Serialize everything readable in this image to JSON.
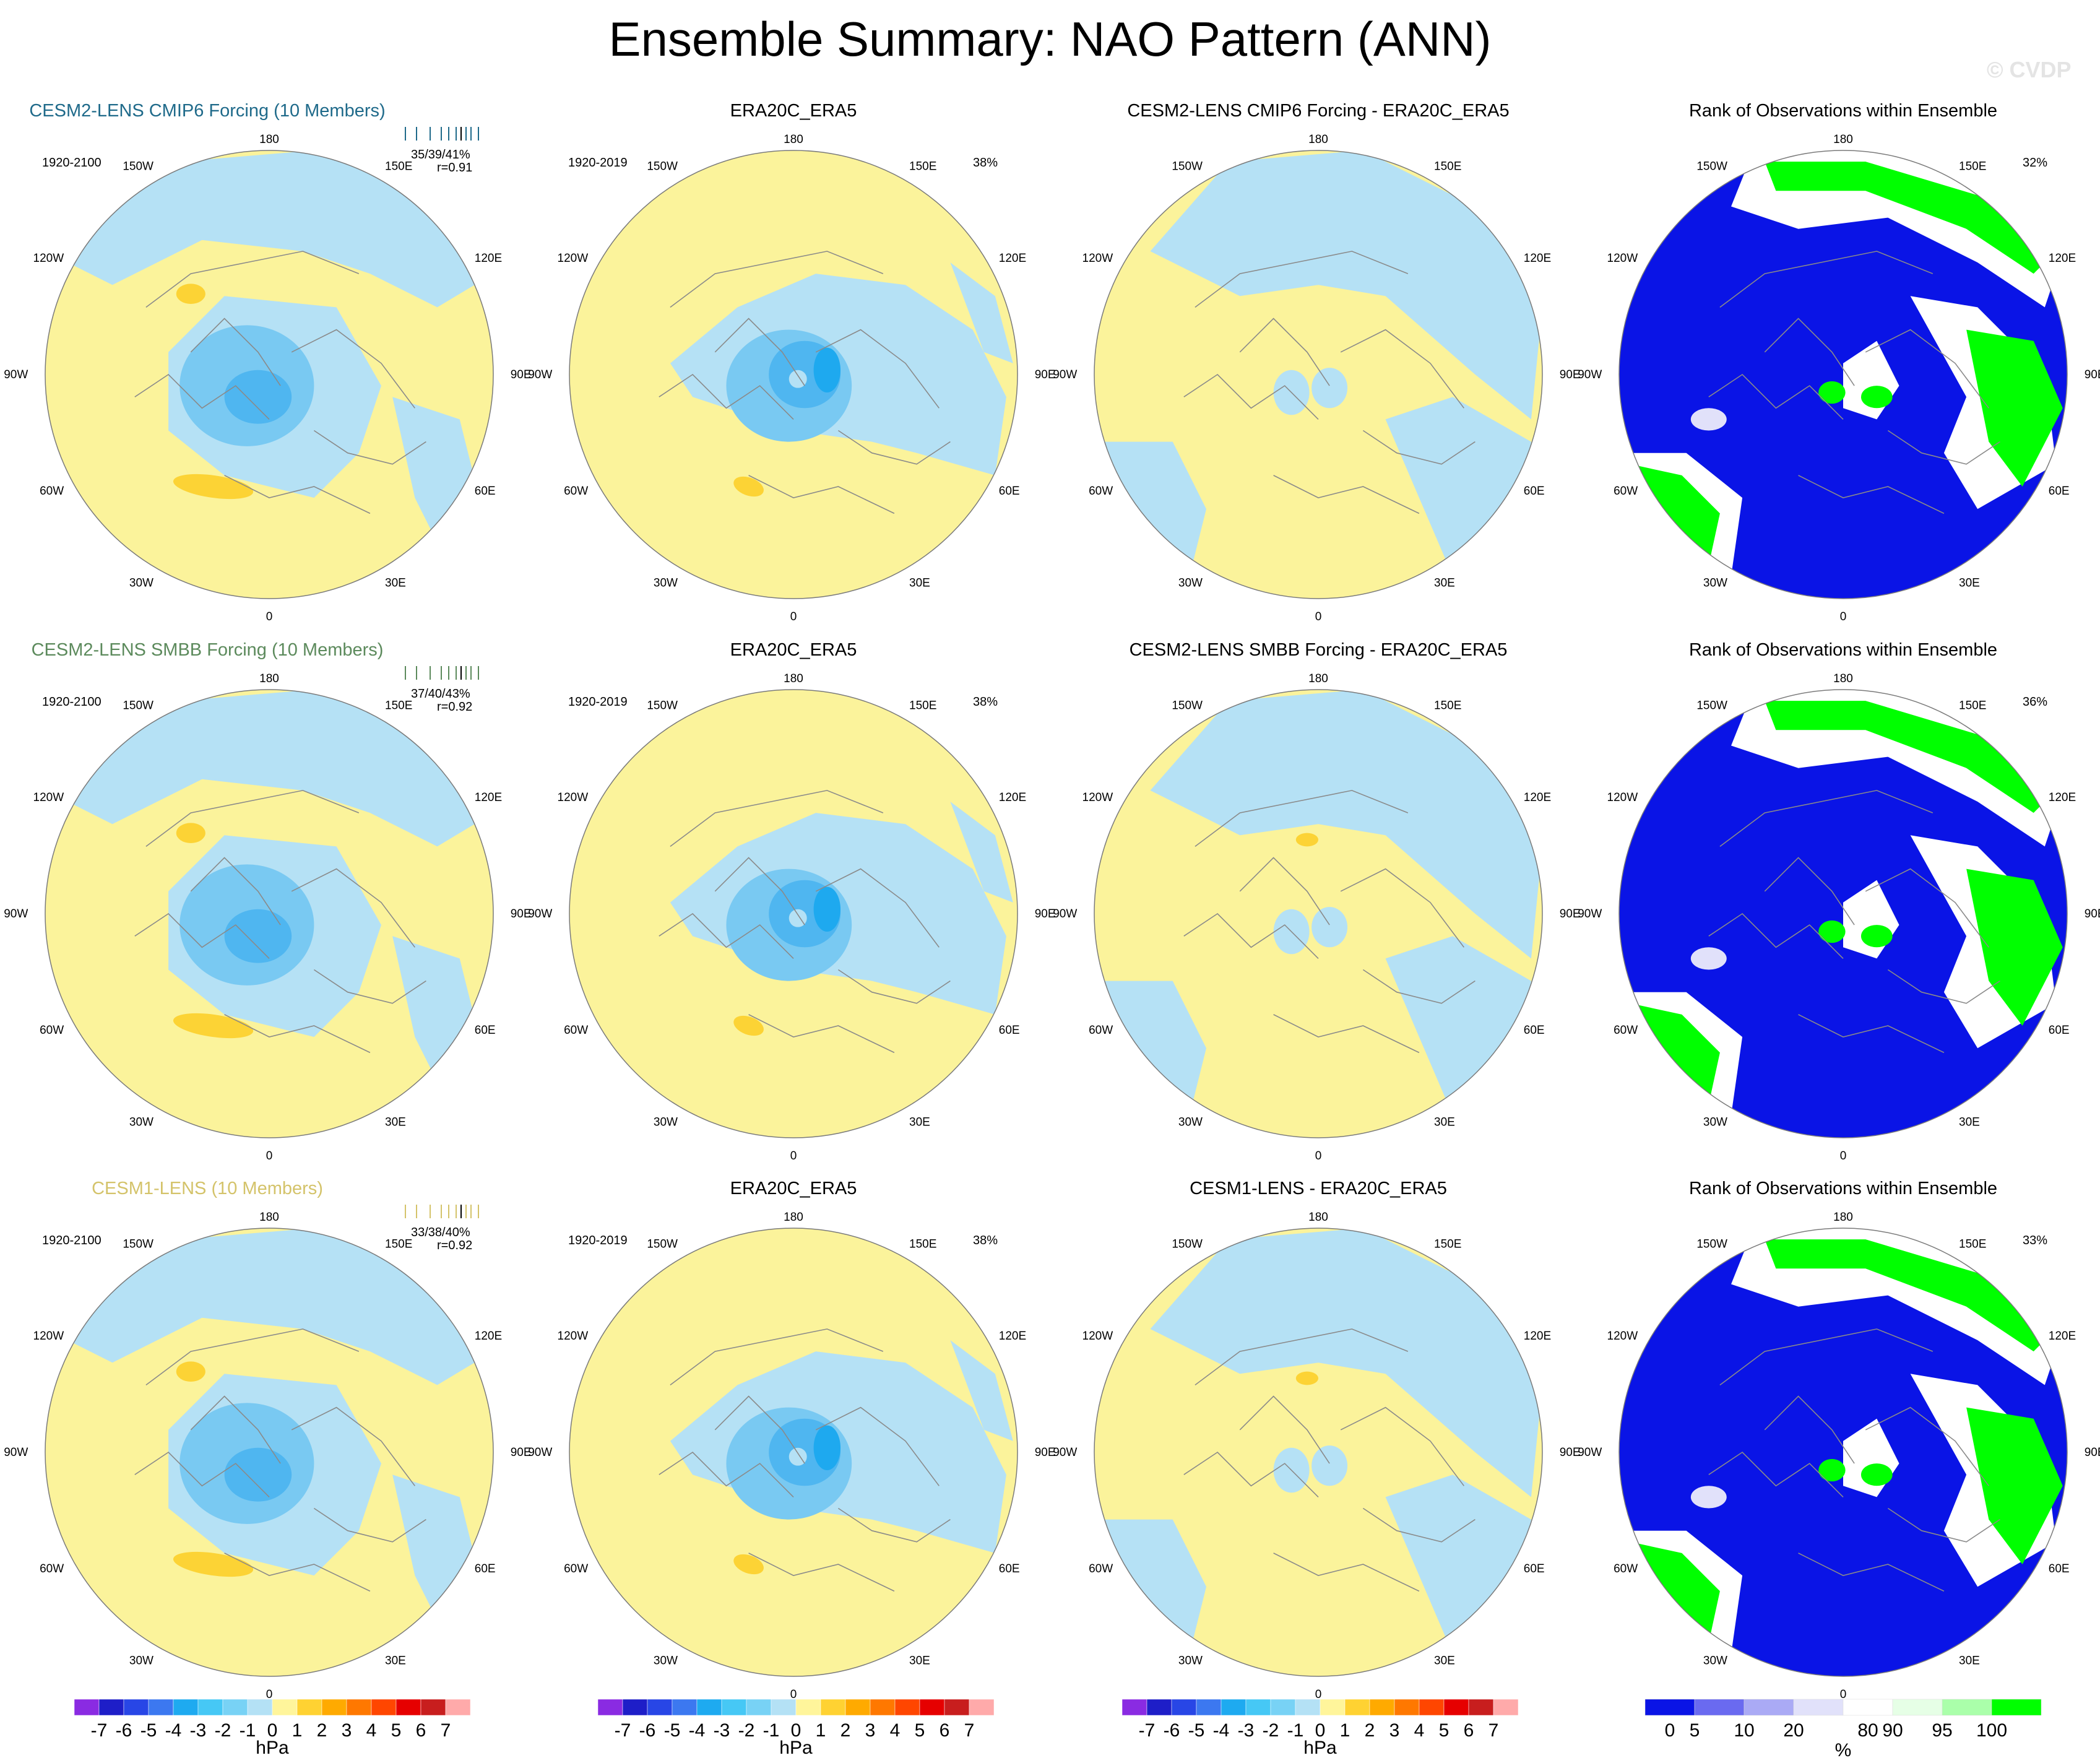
{
  "title": "Ensemble Summary: NAO Pattern (ANN)",
  "watermark": "© CVDP",
  "lon_labels": [
    "180",
    "150W",
    "150E",
    "120W",
    "120E",
    "90W",
    "90E",
    "60W",
    "60E",
    "30W",
    "30E",
    "0"
  ],
  "rows": [
    {
      "model_title": "CESM2-LENS CMIP6 Forcing (10 Members)",
      "model_color": "#1f6a8a",
      "model_years": "1920-2100",
      "spread_stats": "35/39/41%",
      "pattern_corr": "r=0.91",
      "obs_title": "ERA20C_ERA5",
      "obs_years": "1920-2019",
      "obs_pct": "38%",
      "diff_title": "CESM2-LENS CMIP6 Forcing - ERA20C_ERA5",
      "rank_title": "Rank of Observations within Ensemble",
      "rank_pct": "32%"
    },
    {
      "model_title": "CESM2-LENS SMBB Forcing (10 Members)",
      "model_color": "#5c8a5c",
      "model_years": "1920-2100",
      "spread_stats": "37/40/43%",
      "pattern_corr": "r=0.92",
      "obs_title": "ERA20C_ERA5",
      "obs_years": "1920-2019",
      "obs_pct": "38%",
      "diff_title": "CESM2-LENS SMBB Forcing - ERA20C_ERA5",
      "rank_title": "Rank of Observations within Ensemble",
      "rank_pct": "36%"
    },
    {
      "model_title": "CESM1-LENS (10 Members)",
      "model_color": "#d4c36a",
      "model_years": "1920-2100",
      "spread_stats": "33/38/40%",
      "pattern_corr": "r=0.92",
      "obs_title": "ERA20C_ERA5",
      "obs_years": "1920-2019",
      "obs_pct": "38%",
      "diff_title": "CESM1-LENS - ERA20C_ERA5",
      "rank_title": "Rank of Observations within Ensemble",
      "rank_pct": "33%"
    }
  ],
  "hpa_colorbar": {
    "unit": "hPa",
    "labels": [
      "-7",
      "-6",
      "-5",
      "-4",
      "-3",
      "-2",
      "-1",
      "0",
      "1",
      "2",
      "3",
      "4",
      "5",
      "6",
      "7"
    ],
    "colors": [
      "#8a2be2",
      "#1e1ec8",
      "#2846e6",
      "#3c78f0",
      "#1eaaf0",
      "#46c8f5",
      "#78d2f5",
      "#b4e1f5",
      "#fff59b",
      "#ffd232",
      "#ffaa00",
      "#ff7800",
      "#ff4600",
      "#e60000",
      "#c81e1e",
      "#ffaaaa"
    ]
  },
  "pct_colorbar": {
    "unit": "%",
    "labels": [
      "0",
      "5",
      "10",
      "20",
      "80",
      "90",
      "95",
      "100"
    ],
    "colors": [
      "#0a14e6",
      "#6a6af0",
      "#aaaaf5",
      "#e1e1fa",
      "#ffffff",
      "#e6ffe6",
      "#aaffaa",
      "#00ff00"
    ]
  },
  "field_colors": {
    "pos_weak": "#fbf39b",
    "pos_mid": "#fcd335",
    "neg_weak": "#b5e1f5",
    "neg_mid": "#79c9f2",
    "neg_strong": "#4fb6f0",
    "neg_core": "#1ea9ef",
    "rank_low": "#0a14e6",
    "rank_lowmid": "#e1e1fa",
    "rank_mid": "#ffffff",
    "rank_high": "#00ff00",
    "rank_highmid": "#e6ffe6"
  }
}
